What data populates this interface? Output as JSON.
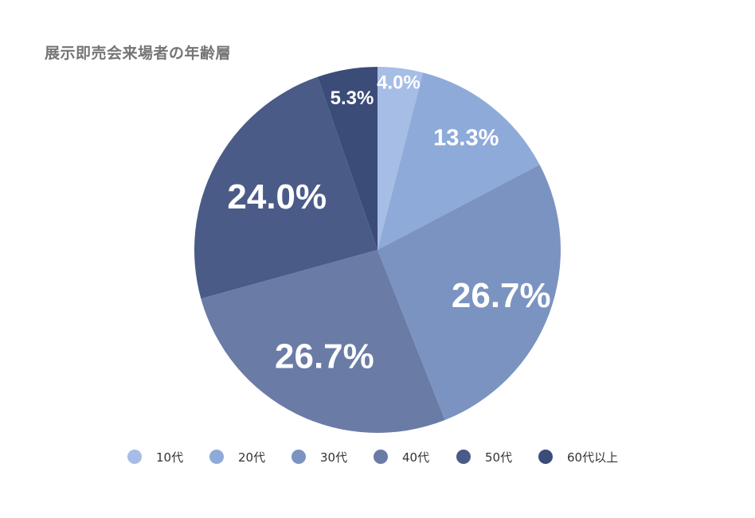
{
  "chart_data": {
    "type": "pie",
    "title": "展示即売会来場者の年齢層",
    "categories": [
      "10代",
      "20代",
      "30代",
      "40代",
      "50代",
      "60代以上"
    ],
    "values": [
      4.0,
      13.3,
      26.7,
      26.7,
      24.0,
      5.3
    ],
    "value_labels": [
      "4.0%",
      "13.3%",
      "26.7%",
      "26.7%",
      "24.0%",
      "5.3%"
    ],
    "colors": [
      "#a6bde6",
      "#8eaad9",
      "#7b93c0",
      "#6a7ba6",
      "#4a5b88",
      "#3c4c78"
    ],
    "legend_position": "bottom"
  }
}
